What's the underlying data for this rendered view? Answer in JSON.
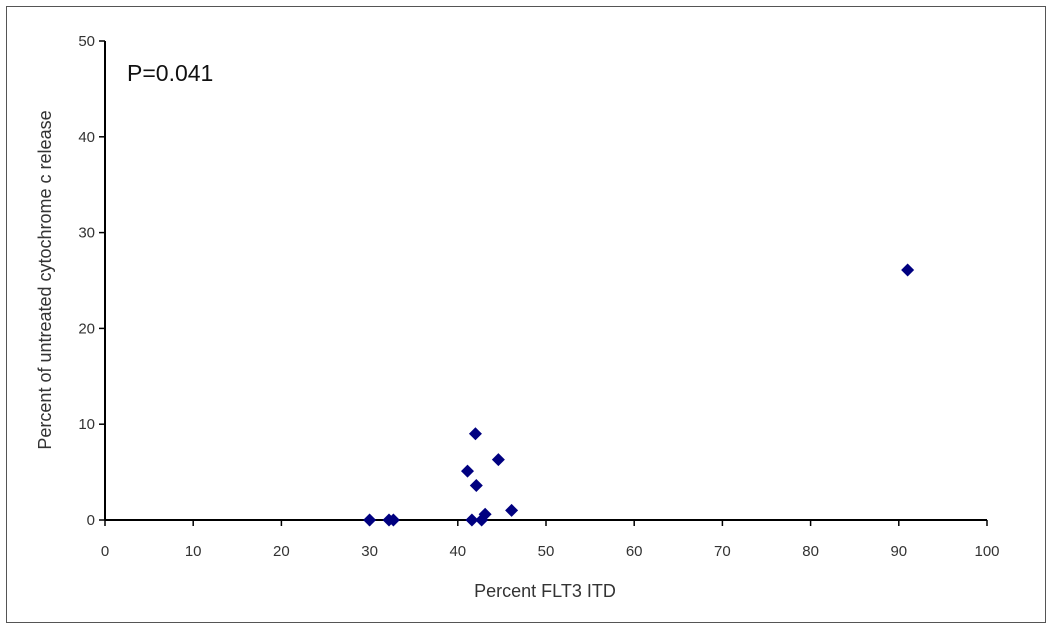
{
  "chart_data": {
    "type": "scatter",
    "title": "",
    "xlabel": "Percent FLT3 ITD",
    "ylabel": "Percent of untreated cytochrome c release",
    "xlim": [
      0,
      100
    ],
    "ylim": [
      0,
      50
    ],
    "x_ticks": [
      0,
      10,
      20,
      30,
      40,
      50,
      60,
      70,
      80,
      90,
      100
    ],
    "y_ticks": [
      0,
      10,
      20,
      30,
      40,
      50
    ],
    "grid": false,
    "legend": "none",
    "annotation": "P=0.041",
    "marker": "diamond",
    "marker_color": "#000080",
    "points": [
      {
        "x": 30.0,
        "y": 0.0
      },
      {
        "x": 32.2,
        "y": 0.0
      },
      {
        "x": 32.7,
        "y": 0.0
      },
      {
        "x": 41.1,
        "y": 5.1
      },
      {
        "x": 41.6,
        "y": 0.0
      },
      {
        "x": 42.0,
        "y": 9.0
      },
      {
        "x": 42.1,
        "y": 3.6
      },
      {
        "x": 42.7,
        "y": 0.0
      },
      {
        "x": 43.1,
        "y": 0.6
      },
      {
        "x": 44.6,
        "y": 6.3
      },
      {
        "x": 46.1,
        "y": 1.0
      },
      {
        "x": 91.0,
        "y": 26.1
      }
    ]
  }
}
